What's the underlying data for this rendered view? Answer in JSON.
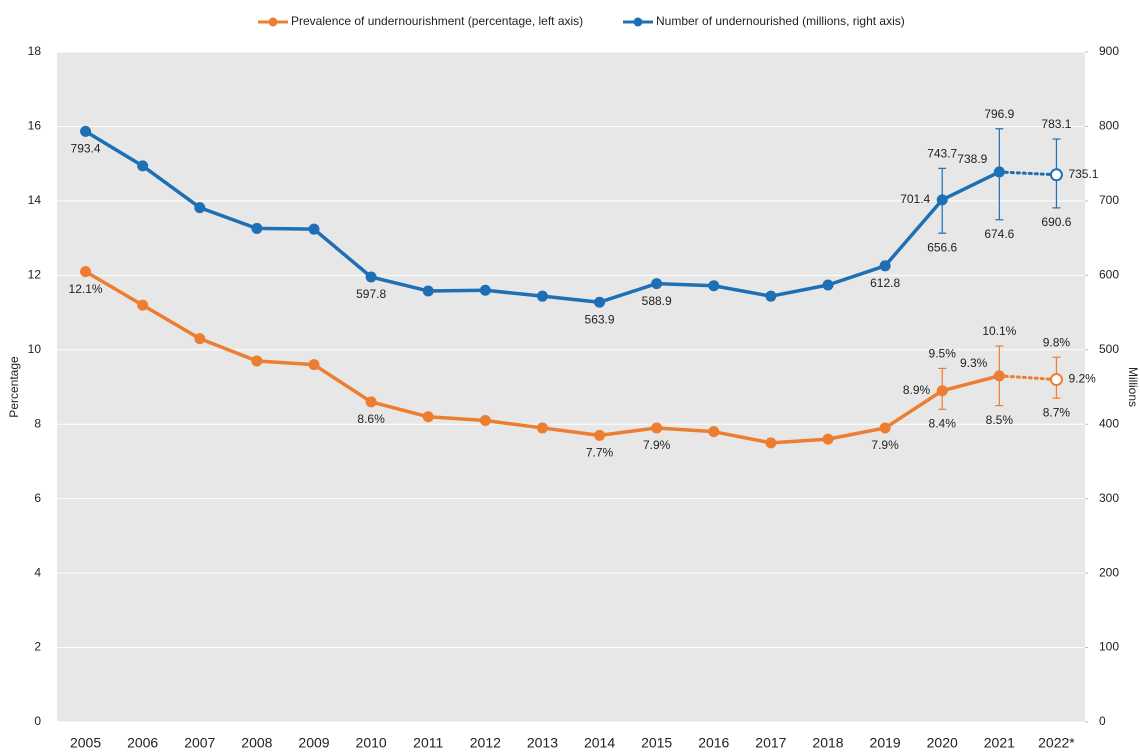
{
  "chart_data": {
    "type": "line",
    "legend": "top",
    "grid": true,
    "ylabel": "Percentage",
    "y2label": "Millions",
    "categories": [
      "2005",
      "2006",
      "2007",
      "2008",
      "2009",
      "2010",
      "2011",
      "2012",
      "2013",
      "2014",
      "2015",
      "2016",
      "2017",
      "2018",
      "2019",
      "2020",
      "2021",
      "2022*"
    ],
    "ylim": [
      0,
      18
    ],
    "yticks": [
      0,
      2,
      4,
      6,
      8,
      10,
      12,
      14,
      16,
      18
    ],
    "y2lim": [
      0,
      900
    ],
    "y2ticks": [
      0,
      100,
      200,
      300,
      400,
      500,
      600,
      700,
      800,
      900
    ],
    "series": [
      {
        "name": "Prevalence of undernourishment (percentage, left axis)",
        "color": "#ed7d31",
        "axis": "y",
        "values": [
          12.1,
          11.2,
          10.3,
          9.7,
          9.6,
          8.6,
          8.2,
          8.1,
          7.9,
          7.7,
          7.9,
          7.8,
          7.5,
          7.6,
          7.9,
          8.9,
          9.3,
          9.2
        ],
        "value_labels": [
          "12.1%",
          null,
          null,
          null,
          null,
          "8.6%",
          null,
          null,
          null,
          "7.7%",
          "7.9%",
          null,
          null,
          null,
          "7.9%",
          "8.9%",
          "9.3%",
          "9.2%"
        ],
        "lower": [
          null,
          null,
          null,
          null,
          null,
          null,
          null,
          null,
          null,
          null,
          null,
          null,
          null,
          null,
          null,
          8.4,
          8.5,
          8.7
        ],
        "upper": [
          null,
          null,
          null,
          null,
          null,
          null,
          null,
          null,
          null,
          null,
          null,
          null,
          null,
          null,
          null,
          9.5,
          10.1,
          9.8
        ],
        "lower_labels": [
          null,
          null,
          null,
          null,
          null,
          null,
          null,
          null,
          null,
          null,
          null,
          null,
          null,
          null,
          null,
          "8.4%",
          "8.5%",
          "8.7%"
        ],
        "upper_labels": [
          null,
          null,
          null,
          null,
          null,
          null,
          null,
          null,
          null,
          null,
          null,
          null,
          null,
          null,
          null,
          "9.5%",
          "10.1%",
          "9.8%"
        ],
        "projected": [
          false,
          false,
          false,
          false,
          false,
          false,
          false,
          false,
          false,
          false,
          false,
          false,
          false,
          false,
          false,
          false,
          false,
          true
        ]
      },
      {
        "name": "Number of undernourished (millions, right axis)",
        "color": "#1f6fb4",
        "axis": "y2",
        "values": [
          793.4,
          747,
          691,
          663,
          662,
          597.8,
          579,
          580,
          572,
          563.9,
          588.9,
          586,
          572,
          587,
          612.8,
          701.4,
          738.9,
          735.1
        ],
        "value_labels": [
          "793.4",
          null,
          null,
          null,
          null,
          "597.8",
          null,
          null,
          null,
          "563.9",
          "588.9",
          null,
          null,
          null,
          "612.8",
          "701.4",
          "738.9",
          "735.1"
        ],
        "lower": [
          null,
          null,
          null,
          null,
          null,
          null,
          null,
          null,
          null,
          null,
          null,
          null,
          null,
          null,
          null,
          656.6,
          674.6,
          690.6
        ],
        "upper": [
          null,
          null,
          null,
          null,
          null,
          null,
          null,
          null,
          null,
          null,
          null,
          null,
          null,
          null,
          null,
          743.7,
          796.9,
          783.1
        ],
        "lower_labels": [
          null,
          null,
          null,
          null,
          null,
          null,
          null,
          null,
          null,
          null,
          null,
          null,
          null,
          null,
          null,
          "656.6",
          "674.6",
          "690.6"
        ],
        "upper_labels": [
          null,
          null,
          null,
          null,
          null,
          null,
          null,
          null,
          null,
          null,
          null,
          null,
          null,
          null,
          null,
          "743.7",
          "796.9",
          "783.1"
        ],
        "projected": [
          false,
          false,
          false,
          false,
          false,
          false,
          false,
          false,
          false,
          false,
          false,
          false,
          false,
          false,
          false,
          false,
          false,
          true
        ]
      }
    ]
  }
}
